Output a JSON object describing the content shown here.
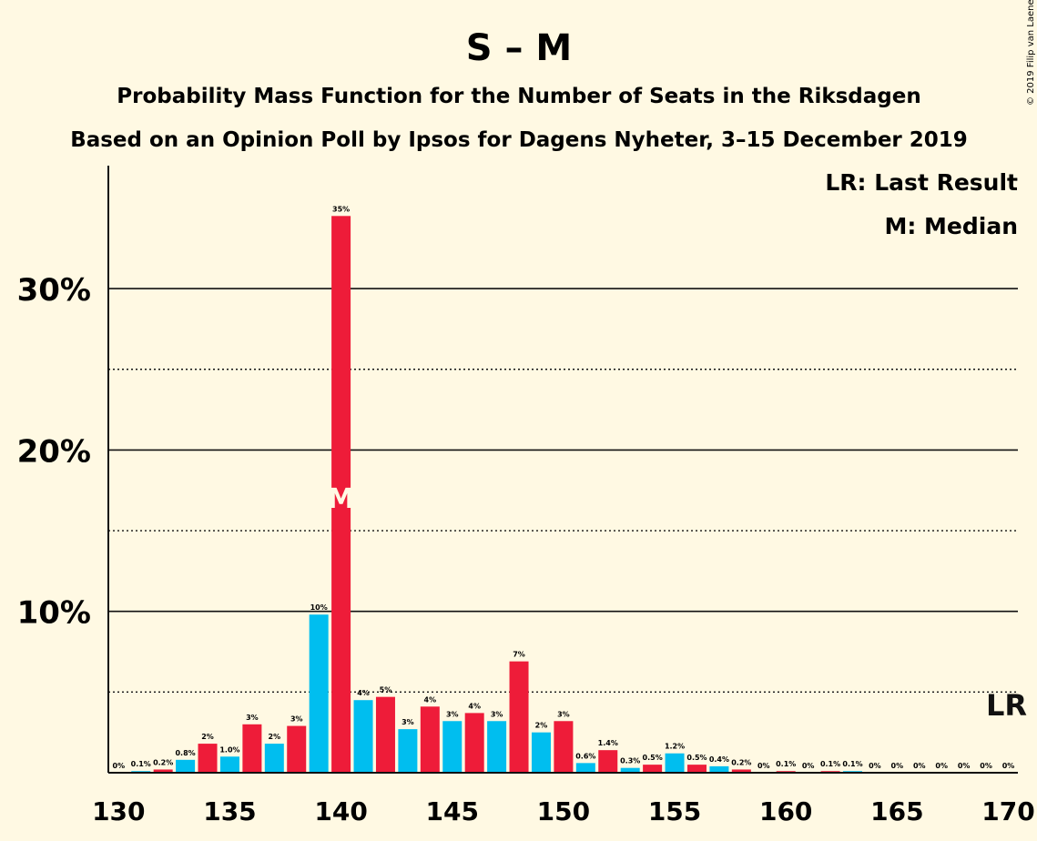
{
  "header": {
    "title": "S – M",
    "subtitle1": "Probability Mass Function for the Number of Seats in the Riksdagen",
    "subtitle2": "Based on an Opinion Poll by Ipsos for Dagens Nyheter, 3–15 December 2019",
    "copyright": "© 2019 Filip van Laenen"
  },
  "legend": {
    "last_result": "LR: Last Result",
    "median": "M: Median",
    "position": "top-right"
  },
  "colors": {
    "background": "#FFF9E3",
    "bar_even": "#EE1C39",
    "bar_odd": "#00BEEF",
    "axis": "#111111"
  },
  "chart_data": {
    "type": "bar",
    "x": [
      130,
      131,
      132,
      133,
      134,
      135,
      136,
      137,
      138,
      139,
      140,
      141,
      142,
      143,
      144,
      145,
      146,
      147,
      148,
      149,
      150,
      151,
      152,
      153,
      154,
      155,
      156,
      157,
      158,
      159,
      160,
      161,
      162,
      163,
      164,
      165,
      166,
      167,
      168,
      169,
      170
    ],
    "values": [
      0,
      0.1,
      0.2,
      0.8,
      1.8,
      1.0,
      3.0,
      1.8,
      2.9,
      9.8,
      34.5,
      4.5,
      4.7,
      2.7,
      4.1,
      3.2,
      3.7,
      3.2,
      6.9,
      2.5,
      3.2,
      0.6,
      1.4,
      0.3,
      0.5,
      1.2,
      0.5,
      0.4,
      0.2,
      0,
      0.1,
      0,
      0.1,
      0.1,
      0,
      0,
      0,
      0,
      0,
      0,
      0
    ],
    "labels": [
      "0%",
      "0.1%",
      "0.2%",
      "0.8%",
      "2%",
      "1.0%",
      "3%",
      "2%",
      "3%",
      "10%",
      "35%",
      "4%",
      "5%",
      "3%",
      "4%",
      "3%",
      "4%",
      "3%",
      "7%",
      "2%",
      "3%",
      "0.6%",
      "1.4%",
      "0.3%",
      "0.5%",
      "1.2%",
      "0.5%",
      "0.4%",
      "0.2%",
      "0%",
      "0.1%",
      "0%",
      "0.1%",
      "0.1%",
      "0%",
      "0%",
      "0%",
      "0%",
      "0%",
      "0%",
      "0%"
    ],
    "xlim": [
      130,
      170
    ],
    "ylim": [
      0,
      37.5
    ],
    "x_ticks": [
      130,
      135,
      140,
      145,
      150,
      155,
      160,
      165,
      170
    ],
    "x_tick_labels": [
      "130",
      "135",
      "140",
      "145",
      "150",
      "155",
      "160",
      "165",
      "170"
    ],
    "y_ticks": [
      10,
      20,
      30
    ],
    "y_tick_labels": [
      "10%",
      "20%",
      "30%"
    ],
    "y_solid_grid": [
      10,
      20,
      30
    ],
    "y_dotted_grid": [
      5,
      15,
      25
    ],
    "median": 140,
    "median_marker": "M",
    "last_result": 170,
    "last_result_marker": "LR"
  }
}
